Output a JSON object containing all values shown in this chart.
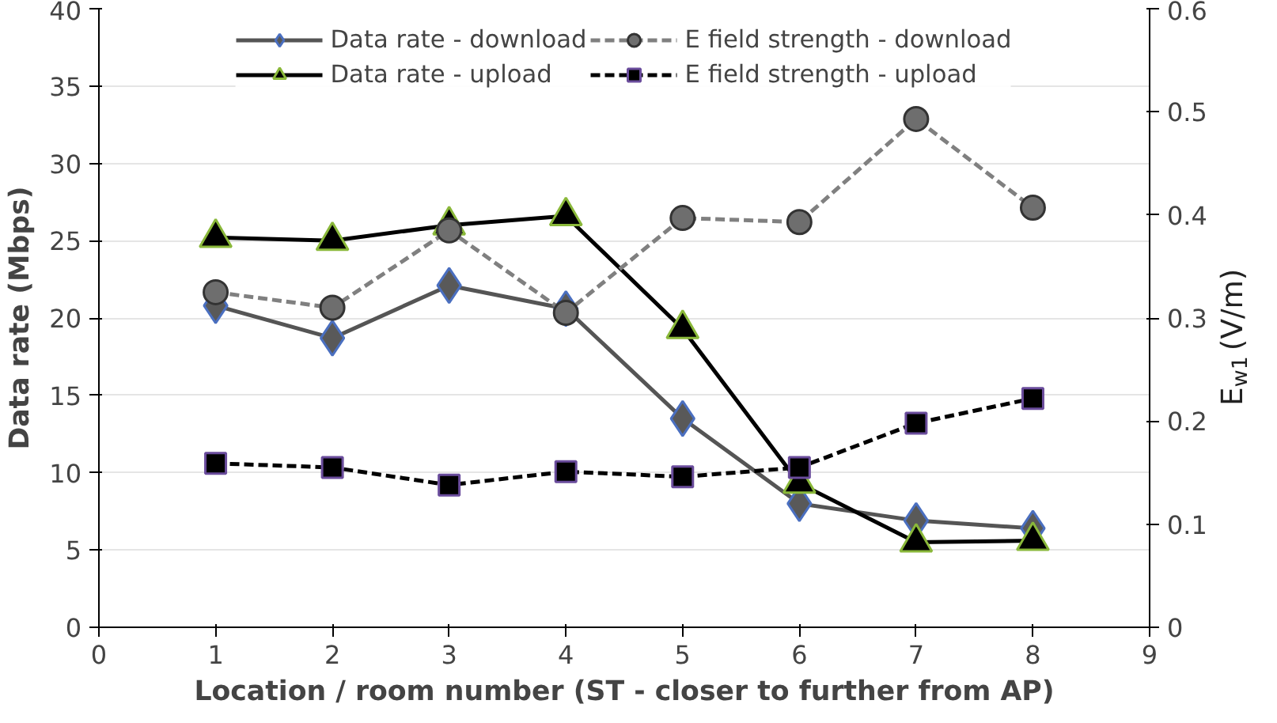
{
  "chart_data": {
    "type": "line",
    "xlabel": "Location / room number (ST - closer to further from AP)",
    "ylabel": "Data rate (Mbps)",
    "y2label": "E$_{w1}$ (V/m)",
    "x": [
      1,
      2,
      3,
      4,
      5,
      6,
      7,
      8
    ],
    "series": [
      {
        "name": "Data rate - download",
        "color": "#555555",
        "marker": "diamond",
        "line_style": "solid",
        "values": [
          20.8,
          18.7,
          22.1,
          20.6,
          13.5,
          8.0,
          6.9,
          6.4
        ]
      },
      {
        "name": "Data rate - upload",
        "color": "#000000",
        "marker": "triangle",
        "line_style": "solid",
        "values": [
          25.2,
          25.0,
          26.0,
          26.6,
          19.3,
          9.3,
          5.5,
          5.6
        ]
      },
      {
        "name": "E field strength - download",
        "color": "#808080",
        "marker": "circle",
        "line_style": "dashed",
        "axis": "y2",
        "values": [
          0.325,
          0.31,
          0.385,
          0.305,
          0.397,
          0.393,
          0.493,
          0.407
        ]
      },
      {
        "name": "E field strength - upload",
        "color": "#000000",
        "marker": "square",
        "line_style": "dashed",
        "axis": "y2",
        "values": [
          0.159,
          0.155,
          0.138,
          0.151,
          0.146,
          0.155,
          0.198,
          0.222
        ]
      }
    ],
    "xlim": [
      0,
      9
    ],
    "xticks": [
      0,
      1,
      2,
      3,
      4,
      5,
      6,
      7,
      8,
      9
    ],
    "ylim": [
      0,
      40
    ],
    "yticks": [
      0,
      5,
      10,
      15,
      20,
      25,
      30,
      35,
      40
    ],
    "y2lim": [
      0,
      0.6
    ],
    "y2ticks": [
      0,
      0.1,
      0.2,
      0.3,
      0.4,
      0.5,
      0.6
    ],
    "grid": "y",
    "legend": "top"
  }
}
